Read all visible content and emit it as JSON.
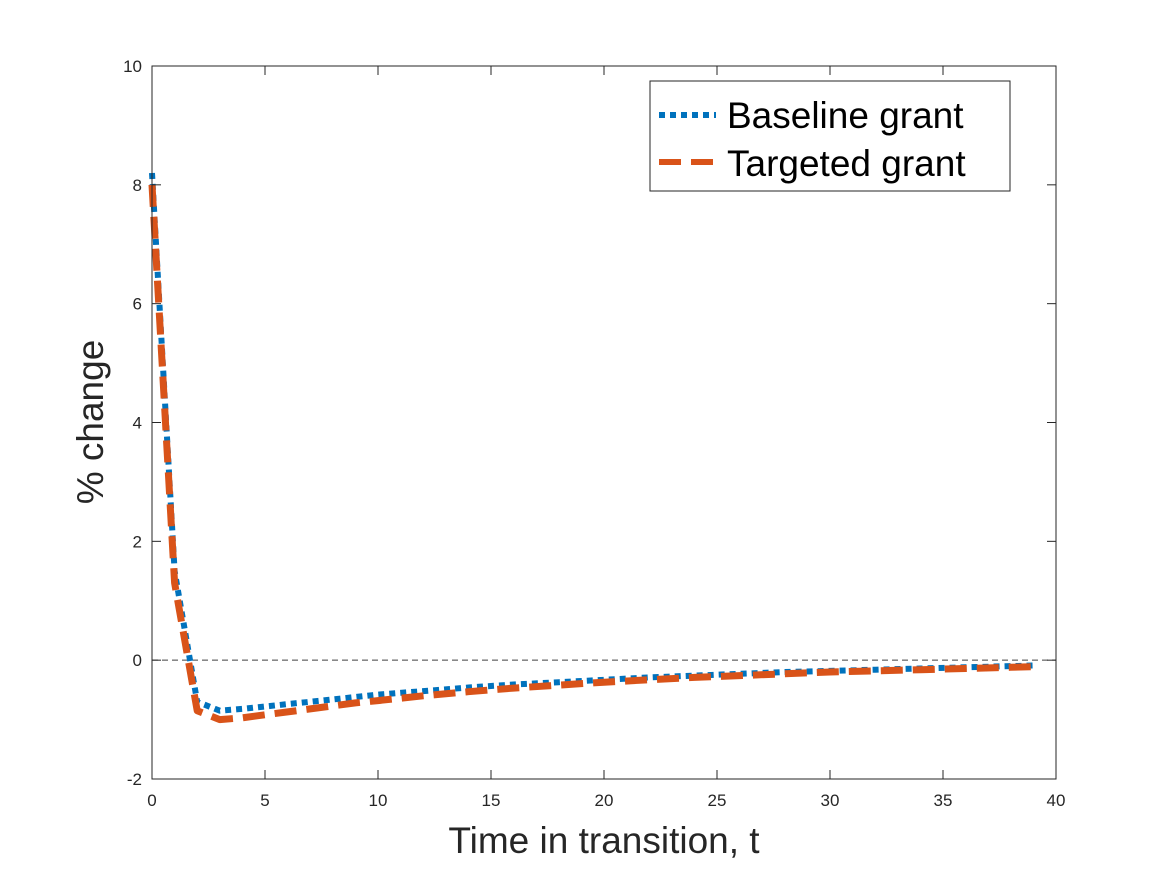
{
  "chart_data": {
    "type": "line",
    "xlabel": "Time in transition, t",
    "ylabel": "% change",
    "xlim": [
      0,
      40
    ],
    "ylim": [
      -2,
      10
    ],
    "xticks": [
      "0",
      "5",
      "10",
      "15",
      "20",
      "25",
      "30",
      "35",
      "40"
    ],
    "yticks": [
      "-2",
      "0",
      "2",
      "4",
      "6",
      "8",
      "10"
    ],
    "grid": false,
    "legend_position": "top-right",
    "zero_reference_line": true,
    "series": [
      {
        "name": "Baseline grant",
        "style": "dotted",
        "color": "#0072BD",
        "x": [
          0,
          1,
          2,
          3,
          4,
          5,
          6,
          7,
          8,
          9,
          10,
          12,
          14,
          16,
          18,
          20,
          22,
          24,
          26,
          28,
          30,
          32,
          34,
          36,
          38,
          39
        ],
        "y": [
          8.2,
          1.5,
          -0.7,
          -0.85,
          -0.82,
          -0.78,
          -0.74,
          -0.7,
          -0.66,
          -0.62,
          -0.58,
          -0.52,
          -0.46,
          -0.41,
          -0.37,
          -0.33,
          -0.29,
          -0.26,
          -0.23,
          -0.2,
          -0.18,
          -0.16,
          -0.14,
          -0.12,
          -0.1,
          -0.09
        ]
      },
      {
        "name": "Targeted grant",
        "style": "dashed",
        "color": "#D95319",
        "x": [
          0,
          1,
          2,
          3,
          4,
          5,
          6,
          7,
          8,
          9,
          10,
          12,
          14,
          16,
          18,
          20,
          22,
          24,
          26,
          28,
          30,
          32,
          34,
          36,
          38,
          39
        ],
        "y": [
          8.0,
          1.3,
          -0.85,
          -1.0,
          -0.97,
          -0.92,
          -0.87,
          -0.82,
          -0.77,
          -0.72,
          -0.68,
          -0.6,
          -0.53,
          -0.47,
          -0.42,
          -0.37,
          -0.33,
          -0.29,
          -0.26,
          -0.23,
          -0.2,
          -0.18,
          -0.16,
          -0.14,
          -0.12,
          -0.11
        ]
      }
    ]
  }
}
